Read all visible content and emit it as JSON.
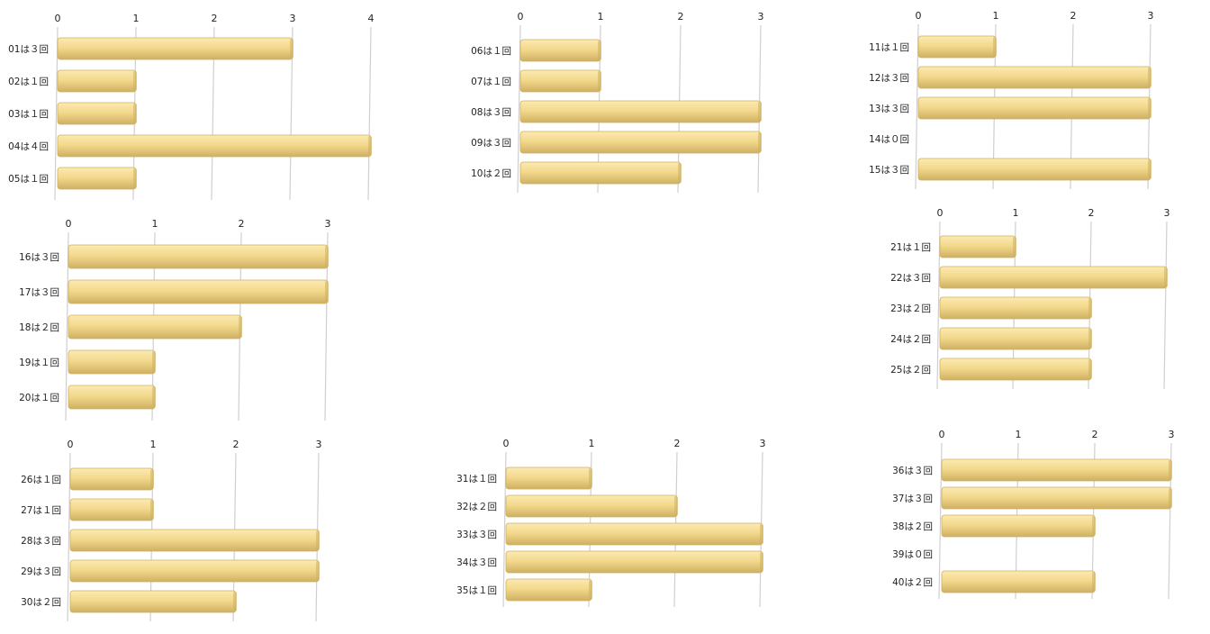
{
  "chart_data": [
    {
      "type": "bar",
      "categories": [
        "01は３回",
        "02は１回",
        "03は１回",
        "04は４回",
        "05は１回"
      ],
      "values": [
        3,
        1,
        1,
        4,
        1
      ],
      "xlim": [
        0,
        4
      ],
      "ticks": [
        0,
        1,
        2,
        3,
        4
      ]
    },
    {
      "type": "bar",
      "categories": [
        "06は１回",
        "07は１回",
        "08は３回",
        "09は３回",
        "10は２回"
      ],
      "values": [
        1,
        1,
        3,
        3,
        2
      ],
      "xlim": [
        0,
        3
      ],
      "ticks": [
        0,
        1,
        2,
        3
      ]
    },
    {
      "type": "bar",
      "categories": [
        "11は１回",
        "12は３回",
        "13は３回",
        "14は０回",
        "15は３回"
      ],
      "values": [
        1,
        3,
        3,
        0,
        3
      ],
      "xlim": [
        0,
        3
      ],
      "ticks": [
        0,
        1,
        2,
        3
      ]
    },
    {
      "type": "bar",
      "categories": [
        "16は３回",
        "17は３回",
        "18は２回",
        "19は１回",
        "20は１回"
      ],
      "values": [
        3,
        3,
        2,
        1,
        1
      ],
      "xlim": [
        0,
        3
      ],
      "ticks": [
        0,
        1,
        2,
        3
      ]
    },
    {
      "type": "bar",
      "categories": [
        "21は１回",
        "22は３回",
        "23は２回",
        "24は２回",
        "25は２回"
      ],
      "values": [
        1,
        3,
        2,
        2,
        2
      ],
      "xlim": [
        0,
        3
      ],
      "ticks": [
        0,
        1,
        2,
        3
      ]
    },
    {
      "type": "bar",
      "categories": [
        "26は１回",
        "27は１回",
        "28は３回",
        "29は３回",
        "30は２回"
      ],
      "values": [
        1,
        1,
        3,
        3,
        2
      ],
      "xlim": [
        0,
        3
      ],
      "ticks": [
        0,
        1,
        2,
        3
      ]
    },
    {
      "type": "bar",
      "categories": [
        "31は１回",
        "32は２回",
        "33は３回",
        "34は３回",
        "35は１回"
      ],
      "values": [
        1,
        2,
        3,
        3,
        1
      ],
      "xlim": [
        0,
        3
      ],
      "ticks": [
        0,
        1,
        2,
        3
      ]
    },
    {
      "type": "bar",
      "categories": [
        "36は３回",
        "37は３回",
        "38は２回",
        "39は０回",
        "40は２回"
      ],
      "values": [
        3,
        3,
        2,
        0,
        2
      ],
      "xlim": [
        0,
        3
      ],
      "ticks": [
        0,
        1,
        2,
        3
      ]
    }
  ],
  "colors": {
    "bar": "#f3d98c",
    "bar_light": "#fbeab3",
    "bar_dark": "#cfb063",
    "grid": "#cfcfcf"
  }
}
